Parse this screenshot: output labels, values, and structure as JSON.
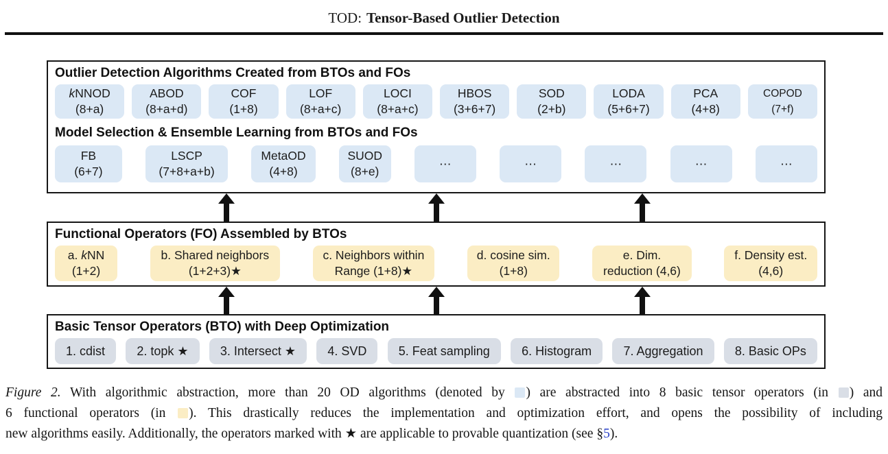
{
  "header": {
    "title_prefix": "TOD:",
    "title_main": "Tensor-Based Outlier Detection"
  },
  "colors": {
    "algorithm_chip": "#dbe8f5",
    "functional_chip": "#fbedc4",
    "tensor_chip": "#d9dee6",
    "link": "#2a41c8"
  },
  "diagram": {
    "algorithms_section": {
      "header": "Outlier Detection Algorithms Created from BTOs and FOs",
      "boxes": [
        {
          "it": "k",
          "l1": "NNOD",
          "l2": "(8+a)"
        },
        {
          "l1": "ABOD",
          "l2": "(8+a+d)"
        },
        {
          "l1": "COF",
          "l2": "(1+8)"
        },
        {
          "l1": "LOF",
          "l2": "(8+a+c)"
        },
        {
          "l1": "LOCI",
          "l2": "(8+a+c)"
        },
        {
          "l1": "HBOS",
          "l2": "(3+6+7)"
        },
        {
          "l1": "SOD",
          "l2": "(2+b)"
        },
        {
          "l1": "LODA",
          "l2": "(5+6+7)"
        },
        {
          "l1": "PCA",
          "l2": "(4+8)"
        },
        {
          "l1": "COPOD",
          "l2": "(7+f)",
          "small": true
        }
      ],
      "ensemble_header": "Model Selection & Ensemble Learning from BTOs and FOs",
      "ensemble_boxes": [
        {
          "l1": "FB",
          "l2": "(6+7)"
        },
        {
          "l1": "LSCP",
          "l2": "(7+8+a+b)"
        },
        {
          "l1": "MetaOD",
          "l2": "(4+8)"
        },
        {
          "l1": "SUOD",
          "l2": "(8+e)"
        },
        {
          "l1": "⋯"
        },
        {
          "l1": "⋯"
        },
        {
          "l1": "⋯"
        },
        {
          "l1": "⋯"
        },
        {
          "l1": "⋯"
        }
      ]
    },
    "fo_section": {
      "header": "Functional Operators (FO) Assembled by BTOs",
      "boxes": [
        {
          "pre": "a. ",
          "it": "k",
          "l1": "NN",
          "l2": "(1+2)"
        },
        {
          "l1": "b. Shared neighbors",
          "l2": "(1+2+3)★"
        },
        {
          "l1": "c. Neighbors within",
          "l2": "Range (1+8)★"
        },
        {
          "l1": "d. cosine sim.",
          "l2": "(1+8)"
        },
        {
          "l1": "e. Dim.",
          "l2": "reduction (4,6)"
        },
        {
          "l1": "f. Density est.",
          "l2": "(4,6)"
        }
      ]
    },
    "bto_section": {
      "header": "Basic Tensor Operators (BTO) with Deep Optimization",
      "boxes": [
        {
          "l1": "1. cdist"
        },
        {
          "l1": "2. topk ★"
        },
        {
          "l1": "3. Intersect ★"
        },
        {
          "l1": "4. SVD"
        },
        {
          "l1": "5. Feat sampling"
        },
        {
          "l1": "6. Histogram"
        },
        {
          "l1": "7. Aggregation"
        },
        {
          "l1": "8. Basic OPs"
        }
      ]
    }
  },
  "caption": {
    "label": "Figure 2.",
    "l1a": " With algorithmic abstraction, more than 20 OD algorithms (denoted by ",
    "l1b": ") are abstracted into 8 basic tensor operators (in ",
    "l1c": ") and",
    "l2a": "6 functional operators (in ",
    "l2b": "). This drastically reduces the implementation and optimization effort, and opens the possibility of including",
    "l3a": "new algorithms easily. Additionally, the operators marked with ★ are applicable to provable quantization (see §",
    "l3_link": "5",
    "l3b": ")."
  }
}
